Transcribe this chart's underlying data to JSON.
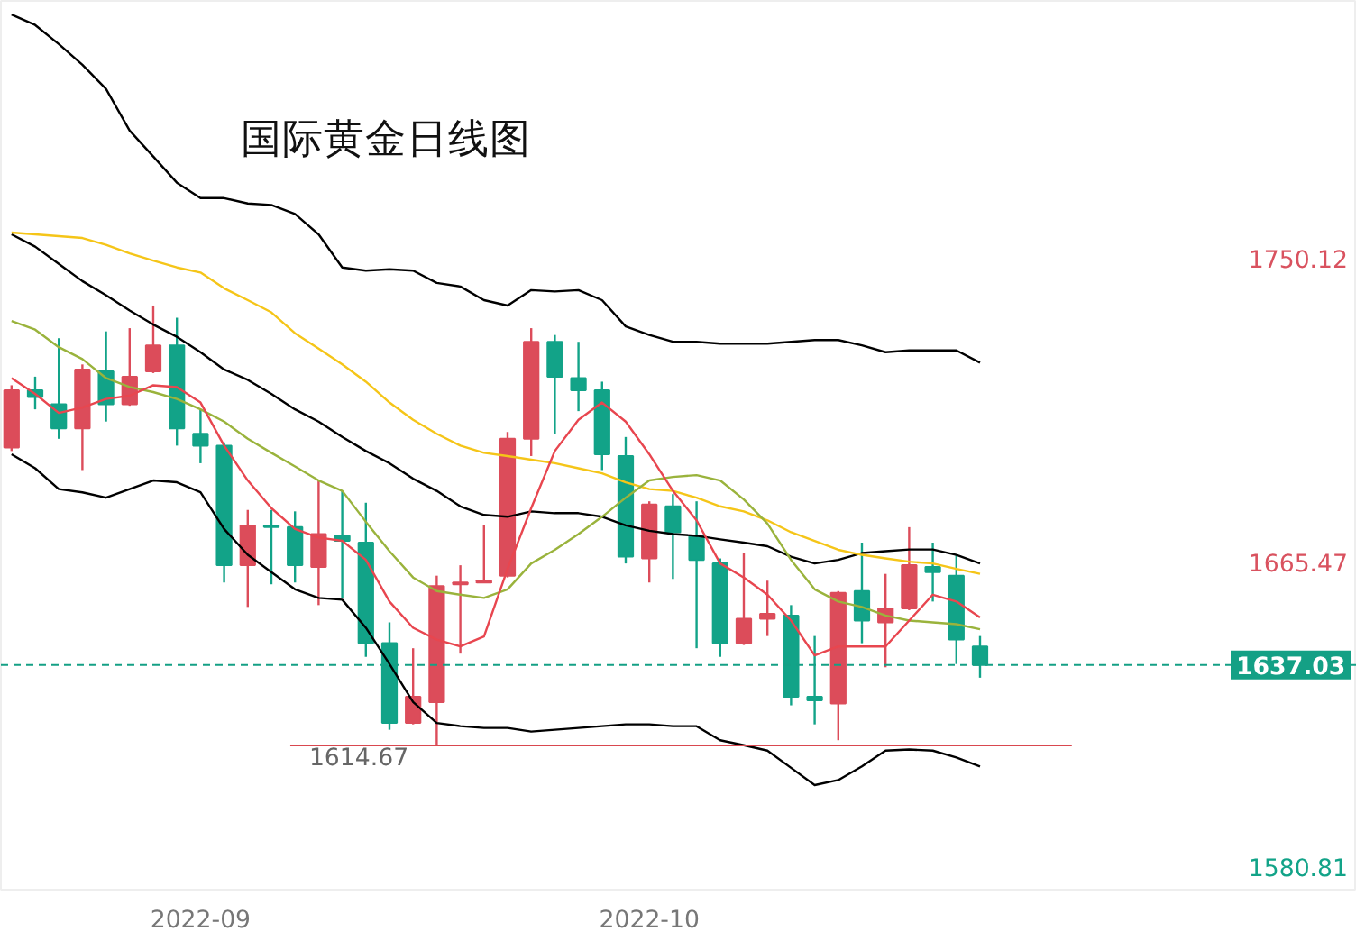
{
  "chart_data": {
    "type": "candlestick",
    "title": "国际黄金日线图",
    "categories": [
      null,
      null,
      null,
      null,
      null,
      null,
      null,
      null,
      "2022-09",
      null,
      null,
      null,
      null,
      null,
      null,
      null,
      null,
      null,
      null,
      null,
      null,
      null,
      null,
      null,
      null,
      null,
      null,
      "2022-10",
      null,
      null,
      null,
      null,
      null,
      null,
      null,
      null,
      null,
      null,
      null,
      null,
      null,
      null
    ],
    "ohlc": [
      [
        1697.6,
        1714.9,
        1696.6,
        1713.5
      ],
      [
        1713.5,
        1717.3,
        1708.2,
        1711.6
      ],
      [
        1709.6,
        1728.0,
        1700.0,
        1702.9
      ],
      [
        1702.9,
        1720.7,
        1691.3,
        1719.3
      ],
      [
        1718.8,
        1729.9,
        1704.8,
        1709.6
      ],
      [
        1709.6,
        1730.8,
        1709.2,
        1717.3
      ],
      [
        1718.8,
        1737.1,
        1718.3,
        1726.0
      ],
      [
        1726.0,
        1733.7,
        1698.1,
        1702.9
      ],
      [
        1701.4,
        1708.2,
        1693.2,
        1698.1
      ],
      [
        1698.1,
        1699.0,
        1660.0,
        1664.8
      ],
      [
        1664.8,
        1680.2,
        1653.2,
        1675.9
      ],
      [
        1675.9,
        1680.2,
        1659.5,
        1675.4
      ],
      [
        1675.4,
        1679.8,
        1660.0,
        1664.8
      ],
      [
        1664.3,
        1688.4,
        1653.7,
        1673.5
      ],
      [
        1673.0,
        1685.5,
        1655.7,
        1671.6
      ],
      [
        1671.1,
        1682.2,
        1639.3,
        1643.1
      ],
      [
        1643.1,
        1648.9,
        1619.0,
        1620.9
      ],
      [
        1620.9,
        1641.7,
        1620.5,
        1628.2
      ],
      [
        1626.7,
        1661.9,
        1614.67,
        1659.0
      ],
      [
        1659.5,
        1664.8,
        1640.2,
        1660.0
      ],
      [
        1660.0,
        1675.9,
        1660.0,
        1660.5
      ],
      [
        1661.9,
        1701.9,
        1661.4,
        1700.0
      ],
      [
        1700.0,
        1730.8,
        1695.2,
        1727.0
      ],
      [
        1727.0,
        1728.9,
        1701.4,
        1717.3
      ],
      [
        1716.9,
        1727.0,
        1707.7,
        1713.5
      ],
      [
        1713.5,
        1715.9,
        1691.3,
        1695.7
      ],
      [
        1695.2,
        1700.5,
        1665.3,
        1667.2
      ],
      [
        1666.7,
        1682.6,
        1660.0,
        1681.7
      ],
      [
        1681.2,
        1684.6,
        1661.0,
        1674.0
      ],
      [
        1673.0,
        1682.6,
        1641.7,
        1666.3
      ],
      [
        1665.3,
        1666.7,
        1639.3,
        1643.1
      ],
      [
        1643.1,
        1668.2,
        1642.6,
        1649.9
      ],
      [
        1649.9,
        1660.5,
        1645.1,
        1651.3
      ],
      [
        1650.8,
        1653.7,
        1625.8,
        1628.2
      ],
      [
        1628.2,
        1645.1,
        1620.5,
        1627.2
      ],
      [
        1626.3,
        1657.6,
        1616.1,
        1657.1
      ],
      [
        1657.6,
        1671.1,
        1643.1,
        1649.4
      ],
      [
        1648.9,
        1662.4,
        1636.4,
        1652.8
      ],
      [
        1652.8,
        1675.4,
        1652.3,
        1664.8
      ],
      [
        1664.3,
        1671.1,
        1654.7,
        1662.9
      ],
      [
        1661.9,
        1667.7,
        1637.3,
        1644.1
      ],
      [
        1642.2,
        1645.1,
        1633.5,
        1637.03
      ]
    ],
    "colors": [
      "#dc4c5a",
      "#12a388",
      "#12a388",
      "#dc4c5a",
      "#12a388",
      "#dc4c5a",
      "#dc4c5a",
      "#12a388",
      "#12a388",
      "#12a388",
      "#dc4c5a",
      "#12a388",
      "#12a388",
      "#dc4c5a",
      "#12a388",
      "#12a388",
      "#12a388",
      "#dc4c5a",
      "#dc4c5a",
      "#dc4c5a",
      "#dc4c5a",
      "#dc4c5a",
      "#dc4c5a",
      "#12a388",
      "#12a388",
      "#12a388",
      "#12a388",
      "#dc4c5a",
      "#12a388",
      "#12a388",
      "#12a388",
      "#dc4c5a",
      "#dc4c5a",
      "#12a388",
      "#12a388",
      "#dc4c5a",
      "#12a388",
      "#dc4c5a",
      "#dc4c5a",
      "#12a388",
      "#12a388",
      "#12a388"
    ],
    "series": [
      {
        "type": "line",
        "color": "#000000",
        "values": [
          1818.1,
          1815.2,
          1809.9,
          1804.1,
          1797.4,
          1785.8,
          1778.6,
          1771.3,
          1767.0,
          1767.0,
          1765.5,
          1765.1,
          1762.6,
          1756.9,
          1747.7,
          1746.8,
          1747.2,
          1746.8,
          1743.4,
          1742.4,
          1738.6,
          1737.1,
          1741.4,
          1741.0,
          1741.4,
          1738.6,
          1731.3,
          1728.9,
          1727.0,
          1727.0,
          1726.5,
          1726.5,
          1726.5,
          1727.0,
          1727.5,
          1727.5,
          1726.0,
          1724.1,
          1724.6,
          1724.6,
          1724.6,
          1721.2
        ]
      },
      {
        "type": "line",
        "color": "#000000",
        "values": [
          1756.9,
          1753.5,
          1748.7,
          1743.9,
          1740.0,
          1735.7,
          1731.8,
          1728.4,
          1724.1,
          1719.3,
          1716.4,
          1712.5,
          1708.2,
          1704.8,
          1700.5,
          1696.6,
          1693.2,
          1688.9,
          1685.5,
          1681.2,
          1678.8,
          1678.3,
          1679.8,
          1679.3,
          1679.3,
          1678.3,
          1675.9,
          1674.4,
          1673.5,
          1673.0,
          1672.0,
          1671.1,
          1670.1,
          1667.2,
          1665.3,
          1666.3,
          1668.2,
          1668.7,
          1669.2,
          1669.2,
          1667.7,
          1665.3
        ]
      },
      {
        "type": "line",
        "color": "#000000",
        "values": [
          1695.7,
          1691.8,
          1686.0,
          1685.1,
          1683.6,
          1686.0,
          1688.4,
          1687.9,
          1685.1,
          1674.9,
          1667.7,
          1662.9,
          1658.1,
          1655.7,
          1655.2,
          1647.4,
          1637.3,
          1626.7,
          1620.9,
          1620.0,
          1619.5,
          1619.5,
          1618.5,
          1619.0,
          1619.5,
          1620.0,
          1620.5,
          1620.5,
          1620.0,
          1620.0,
          1616.1,
          1614.7,
          1613.2,
          1608.4,
          1603.6,
          1605.0,
          1608.8,
          1613.2,
          1613.5,
          1613.2,
          1611.3,
          1608.8
        ]
      },
      {
        "type": "line",
        "color": "#f5c518",
        "values": [
          1757.4,
          1756.9,
          1756.4,
          1755.9,
          1754.0,
          1751.6,
          1749.6,
          1747.7,
          1746.3,
          1741.9,
          1738.6,
          1735.2,
          1729.4,
          1725.1,
          1720.7,
          1715.9,
          1710.1,
          1705.3,
          1701.4,
          1698.1,
          1696.1,
          1695.2,
          1694.2,
          1693.2,
          1691.8,
          1690.4,
          1687.9,
          1686.0,
          1685.5,
          1683.6,
          1681.2,
          1679.8,
          1677.3,
          1674.0,
          1671.6,
          1669.1,
          1667.7,
          1666.7,
          1665.8,
          1665.3,
          1663.8,
          1662.4
        ]
      },
      {
        "type": "line",
        "color": "#9ab33c",
        "values": [
          1732.8,
          1730.4,
          1725.5,
          1722.2,
          1716.9,
          1714.4,
          1713.0,
          1711.1,
          1708.2,
          1704.8,
          1700.0,
          1696.1,
          1692.3,
          1688.4,
          1685.5,
          1676.9,
          1668.7,
          1661.4,
          1657.6,
          1656.6,
          1655.7,
          1658.1,
          1665.3,
          1669.1,
          1673.5,
          1678.3,
          1683.6,
          1688.4,
          1689.4,
          1689.9,
          1688.4,
          1683.1,
          1676.4,
          1666.3,
          1658.1,
          1654.7,
          1653.2,
          1650.8,
          1649.4,
          1648.9,
          1648.4,
          1647.0
        ]
      },
      {
        "type": "line",
        "color": "#e8464f",
        "values": [
          1716.9,
          1712.5,
          1707.2,
          1708.7,
          1711.1,
          1712.0,
          1714.9,
          1714.4,
          1710.1,
          1698.1,
          1688.4,
          1680.7,
          1674.9,
          1672.5,
          1671.6,
          1666.3,
          1654.7,
          1647.4,
          1644.1,
          1642.2,
          1645.0,
          1663.8,
          1680.7,
          1696.6,
          1705.3,
          1710.1,
          1704.8,
          1695.7,
          1685.5,
          1677.3,
          1665.3,
          1661.4,
          1656.6,
          1649.4,
          1639.7,
          1642.2,
          1642.2,
          1642.2,
          1649.4,
          1656.6,
          1654.7,
          1650.3
        ]
      }
    ],
    "ylim": [
      1574.5,
      1821.9
    ],
    "yticks": [
      1750.12,
      1665.47,
      1580.81
    ],
    "ref_lines": [
      {
        "axis": "y",
        "value": 1614.67,
        "label": "1614.67",
        "color": "#d9474f"
      },
      {
        "axis": "y",
        "value": 1637.03,
        "label": "1637.03",
        "color": "#14a085",
        "line_style": "dashed"
      }
    ],
    "grid": false
  }
}
